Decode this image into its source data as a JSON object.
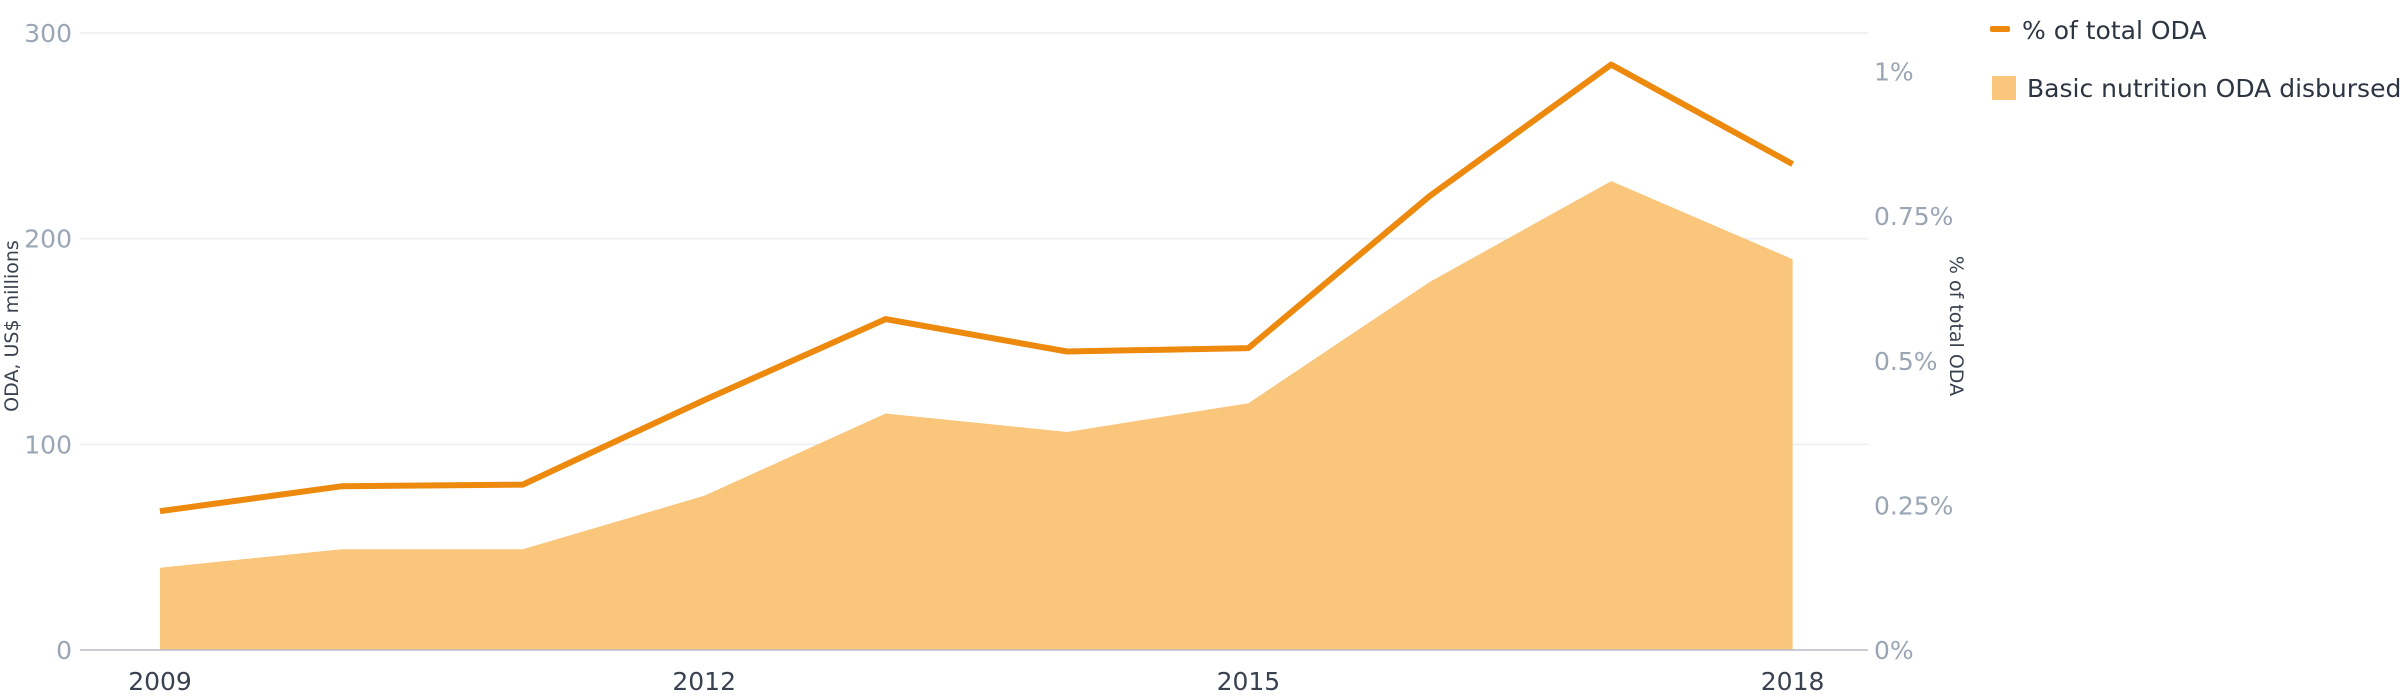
{
  "chart_data": {
    "type": "area",
    "x": [
      2009,
      2010,
      2011,
      2012,
      2013,
      2014,
      2015,
      2016,
      2017,
      2018
    ],
    "x_tick_labels": [
      "2009",
      "2012",
      "2015",
      "2018"
    ],
    "series": [
      {
        "name": "Basic nutrition ODA disbursed",
        "type": "area",
        "axis": "left",
        "color": "#f9c67b",
        "values": [
          40,
          49,
          49,
          75,
          115,
          106,
          120,
          179,
          228,
          190
        ]
      },
      {
        "name": "% of total ODA",
        "type": "line",
        "axis": "right",
        "color": "#ed8a0e",
        "values": [
          0.24,
          0.283,
          0.286,
          0.432,
          0.572,
          0.516,
          0.522,
          0.785,
          1.012,
          0.84
        ]
      }
    ],
    "y_left": {
      "label": "ODA, US$ millions",
      "range": [
        0,
        300
      ],
      "ticks": [
        0,
        100,
        200,
        300
      ],
      "tick_labels": [
        "0",
        "100",
        "200",
        "300"
      ]
    },
    "y_right": {
      "label": "% of total ODA",
      "range": [
        0,
        1.0667
      ],
      "ticks": [
        0,
        0.25,
        0.5,
        0.75,
        1.0
      ],
      "tick_labels": [
        "0%",
        "0.25%",
        "0.5%",
        "0.75%",
        "1%"
      ]
    },
    "grid": true,
    "legend_position": "top-right",
    "legend": [
      {
        "label": "% of total ODA",
        "marker": "line",
        "color": "#ed8a0e"
      },
      {
        "label": "Basic nutrition ODA disbursed",
        "marker": "square",
        "color": "#f9c67b"
      }
    ]
  }
}
